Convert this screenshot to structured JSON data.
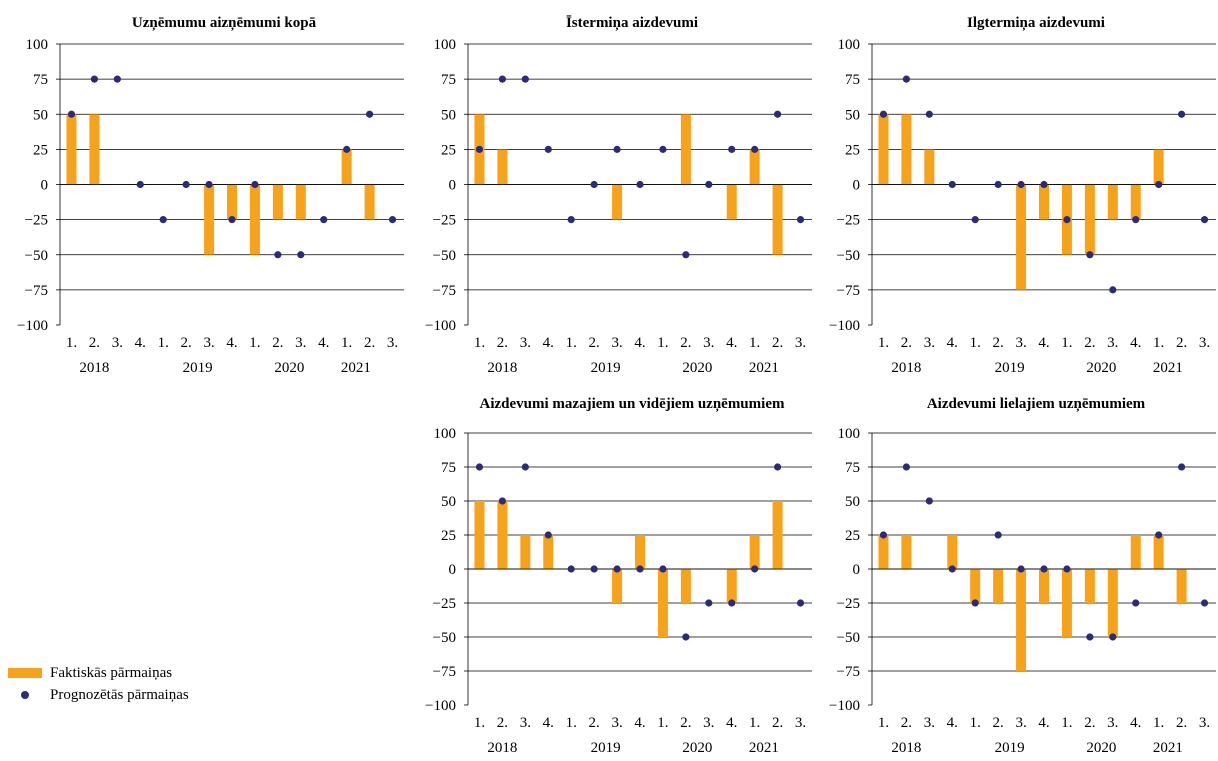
{
  "colors": {
    "bar": "#F7A21B",
    "dot": "#2E2A7B",
    "grid": "#000000"
  },
  "legend": {
    "actual": "Faktiskās pārmaiņas",
    "forecast": "Prognozētās pārmaiņas"
  },
  "chart_data": [
    {
      "type": "bar",
      "title": "Uzņēmumu aizņēmumi kopā",
      "ylim": [
        -100,
        100
      ],
      "yticks": [
        100,
        75,
        50,
        25,
        0,
        -25,
        -50,
        -75,
        -100
      ],
      "ytick_labels": [
        "100",
        "75",
        "50",
        "25",
        "0",
        "−25",
        "−50",
        "−75",
        "−100"
      ],
      "categories": [
        "1.",
        "2.",
        "3.",
        "4.",
        "1.",
        "2.",
        "3.",
        "4.",
        "1.",
        "2.",
        "3.",
        "4.",
        "1.",
        "2.",
        "3."
      ],
      "years": [
        {
          "label": "2018",
          "at": 1
        },
        {
          "label": "2019",
          "at": 5.5
        },
        {
          "label": "2020",
          "at": 9.5
        },
        {
          "label": "2021",
          "at": 12.4
        }
      ],
      "series": [
        {
          "name": "Faktiskās pārmaiņas",
          "kind": "bar",
          "values": [
            50,
            50,
            0,
            0,
            0,
            0,
            -50,
            -25,
            -50,
            -25,
            -25,
            0,
            25,
            -25,
            null
          ]
        },
        {
          "name": "Prognozētās pārmaiņas",
          "kind": "dot",
          "values": [
            50,
            75,
            75,
            0,
            -25,
            0,
            0,
            -25,
            0,
            -50,
            -50,
            -25,
            25,
            50,
            -25
          ]
        }
      ]
    },
    {
      "type": "bar",
      "title": "Īstermiņa aizdevumi",
      "ylim": [
        -100,
        100
      ],
      "yticks": [
        100,
        75,
        50,
        25,
        0,
        -25,
        -50,
        -75,
        -100
      ],
      "ytick_labels": [
        "100",
        "75",
        "50",
        "25",
        "0",
        "−25",
        "−50",
        "−75",
        "−100"
      ],
      "categories": [
        "1.",
        "2.",
        "3.",
        "4.",
        "1.",
        "2.",
        "3.",
        "4.",
        "1.",
        "2.",
        "3.",
        "4.",
        "1.",
        "2.",
        "3."
      ],
      "years": [
        {
          "label": "2018",
          "at": 1
        },
        {
          "label": "2019",
          "at": 5.5
        },
        {
          "label": "2020",
          "at": 9.5
        },
        {
          "label": "2021",
          "at": 12.4
        }
      ],
      "series": [
        {
          "name": "Faktiskās pārmaiņas",
          "kind": "bar",
          "values": [
            50,
            25,
            0,
            0,
            0,
            0,
            -25,
            0,
            0,
            50,
            0,
            -25,
            25,
            -50,
            null
          ]
        },
        {
          "name": "Prognozētās pārmaiņas",
          "kind": "dot",
          "values": [
            25,
            75,
            75,
            25,
            -25,
            0,
            25,
            0,
            25,
            -50,
            0,
            25,
            25,
            50,
            -25
          ]
        }
      ]
    },
    {
      "type": "bar",
      "title": "Ilgtermiņa aizdevumi",
      "ylim": [
        -100,
        100
      ],
      "yticks": [
        100,
        75,
        50,
        25,
        0,
        -25,
        -50,
        -75,
        -100
      ],
      "ytick_labels": [
        "100",
        "75",
        "50",
        "25",
        "0",
        "−25",
        "−50",
        "−75",
        "−100"
      ],
      "categories": [
        "1.",
        "2.",
        "3.",
        "4.",
        "1.",
        "2.",
        "3.",
        "4.",
        "1.",
        "2.",
        "3.",
        "4.",
        "1.",
        "2.",
        "3."
      ],
      "years": [
        {
          "label": "2018",
          "at": 1
        },
        {
          "label": "2019",
          "at": 5.5
        },
        {
          "label": "2020",
          "at": 9.5
        },
        {
          "label": "2021",
          "at": 12.4
        }
      ],
      "series": [
        {
          "name": "Faktiskās pārmaiņas",
          "kind": "bar",
          "values": [
            50,
            50,
            25,
            0,
            0,
            0,
            -75,
            -25,
            -50,
            -50,
            -25,
            -25,
            25,
            0,
            null
          ]
        },
        {
          "name": "Prognozētās pārmaiņas",
          "kind": "dot",
          "values": [
            50,
            75,
            50,
            0,
            -25,
            0,
            0,
            0,
            -25,
            -50,
            -75,
            -25,
            0,
            50,
            -25
          ]
        }
      ]
    },
    {
      "type": "bar",
      "title": "Aizdevumi mazajiem un vidējiem uzņēmumiem",
      "ylim": [
        -100,
        100
      ],
      "yticks": [
        100,
        75,
        50,
        25,
        0,
        -25,
        -50,
        -75,
        -100
      ],
      "ytick_labels": [
        "100",
        "75",
        "50",
        "25",
        "0",
        "−25",
        "−50",
        "−75",
        "−100"
      ],
      "categories": [
        "1.",
        "2.",
        "3.",
        "4.",
        "1.",
        "2.",
        "3.",
        "4.",
        "1.",
        "2.",
        "3.",
        "4.",
        "1.",
        "2.",
        "3."
      ],
      "years": [
        {
          "label": "2018",
          "at": 1
        },
        {
          "label": "2019",
          "at": 5.5
        },
        {
          "label": "2020",
          "at": 9.5
        },
        {
          "label": "2021",
          "at": 12.4
        }
      ],
      "series": [
        {
          "name": "Faktiskās pārmaiņas",
          "kind": "bar",
          "values": [
            50,
            50,
            25,
            25,
            0,
            0,
            -25,
            25,
            -50,
            -25,
            0,
            -25,
            25,
            50,
            null
          ]
        },
        {
          "name": "Prognozētās pārmaiņas",
          "kind": "dot",
          "values": [
            75,
            50,
            75,
            25,
            0,
            0,
            0,
            0,
            0,
            -50,
            -25,
            -25,
            0,
            75,
            -25
          ]
        }
      ]
    },
    {
      "type": "bar",
      "title": "Aizdevumi lielajiem uzņēmumiem",
      "ylim": [
        -100,
        100
      ],
      "yticks": [
        100,
        75,
        50,
        25,
        0,
        -25,
        -50,
        -75,
        -100
      ],
      "ytick_labels": [
        "100",
        "75",
        "50",
        "25",
        "0",
        "−25",
        "−50",
        "−75",
        "−100"
      ],
      "categories": [
        "1.",
        "2.",
        "3.",
        "4.",
        "1.",
        "2.",
        "3.",
        "4.",
        "1.",
        "2.",
        "3.",
        "4.",
        "1.",
        "2.",
        "3."
      ],
      "years": [
        {
          "label": "2018",
          "at": 1
        },
        {
          "label": "2019",
          "at": 5.5
        },
        {
          "label": "2020",
          "at": 9.5
        },
        {
          "label": "2021",
          "at": 12.4
        }
      ],
      "series": [
        {
          "name": "Faktiskās pārmaiņas",
          "kind": "bar",
          "values": [
            25,
            25,
            0,
            25,
            -25,
            -25,
            -75,
            -25,
            -50,
            -25,
            -50,
            25,
            25,
            -25,
            null
          ]
        },
        {
          "name": "Prognozētās pārmaiņas",
          "kind": "dot",
          "values": [
            25,
            75,
            50,
            0,
            -25,
            25,
            0,
            0,
            0,
            -50,
            -50,
            -25,
            25,
            75,
            -25
          ]
        }
      ]
    }
  ]
}
